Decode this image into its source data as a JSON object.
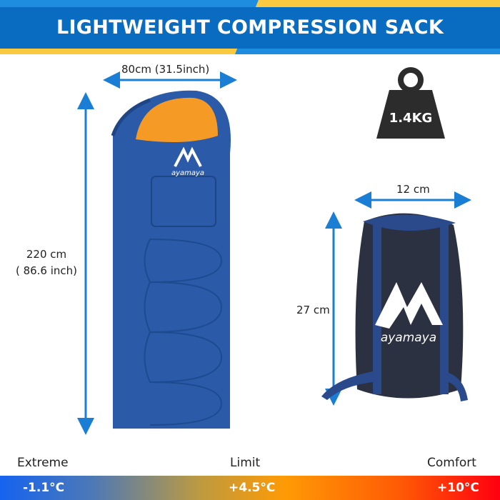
{
  "header": {
    "title": "LIGHTWEIGHT COMPRESSION SACK",
    "colors": {
      "band": "#0a6cc0",
      "stripe_blue": "#1e8de0",
      "stripe_yellow": "#f9c940"
    }
  },
  "sleeping_bag": {
    "width_label": "80cm (31.5inch)",
    "length_label": "220 cm",
    "length_label_inch": "( 86.6 inch)",
    "brand": "ayamaya",
    "colors": {
      "shell": "#2a5aa8",
      "lining": "#f59a25"
    }
  },
  "weight": {
    "label": "1.4KG",
    "icon": "weight-icon"
  },
  "compression_sack": {
    "width_label": "12 cm",
    "height_label": "27 cm",
    "brand": "ayamaya"
  },
  "temperature": {
    "items": [
      {
        "label": "Extreme",
        "value": "-1.1°C"
      },
      {
        "label": "Limit",
        "value": "+4.5°C"
      },
      {
        "label": "Comfort",
        "value": "+10°C"
      }
    ]
  }
}
